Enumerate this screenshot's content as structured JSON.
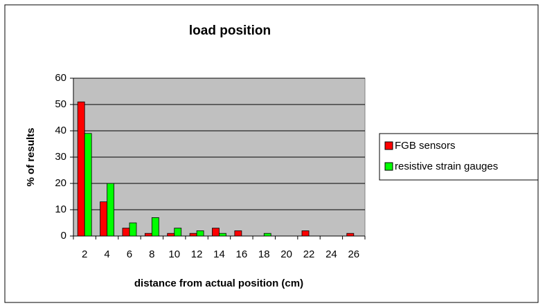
{
  "chart_data": {
    "type": "bar",
    "title": "load position",
    "x_label": "distance from actual position (cm)",
    "y_label": "% of results",
    "categories": [
      2,
      4,
      6,
      8,
      10,
      12,
      14,
      16,
      18,
      20,
      22,
      24,
      26
    ],
    "series": [
      {
        "name": "FGB sensors",
        "color": "#ff0000",
        "values": [
          51,
          13,
          3,
          1,
          1,
          1,
          3,
          2,
          0,
          0,
          2,
          0,
          1
        ]
      },
      {
        "name": "resistive strain gauges",
        "color": "#00ff00",
        "values": [
          39,
          20,
          5,
          7,
          3,
          2,
          1,
          0,
          1,
          0,
          0,
          0,
          0
        ]
      }
    ],
    "ylim": [
      0,
      60
    ],
    "yticks": [
      0,
      10,
      20,
      30,
      40,
      50,
      60
    ],
    "grid": true,
    "legend": "right"
  }
}
